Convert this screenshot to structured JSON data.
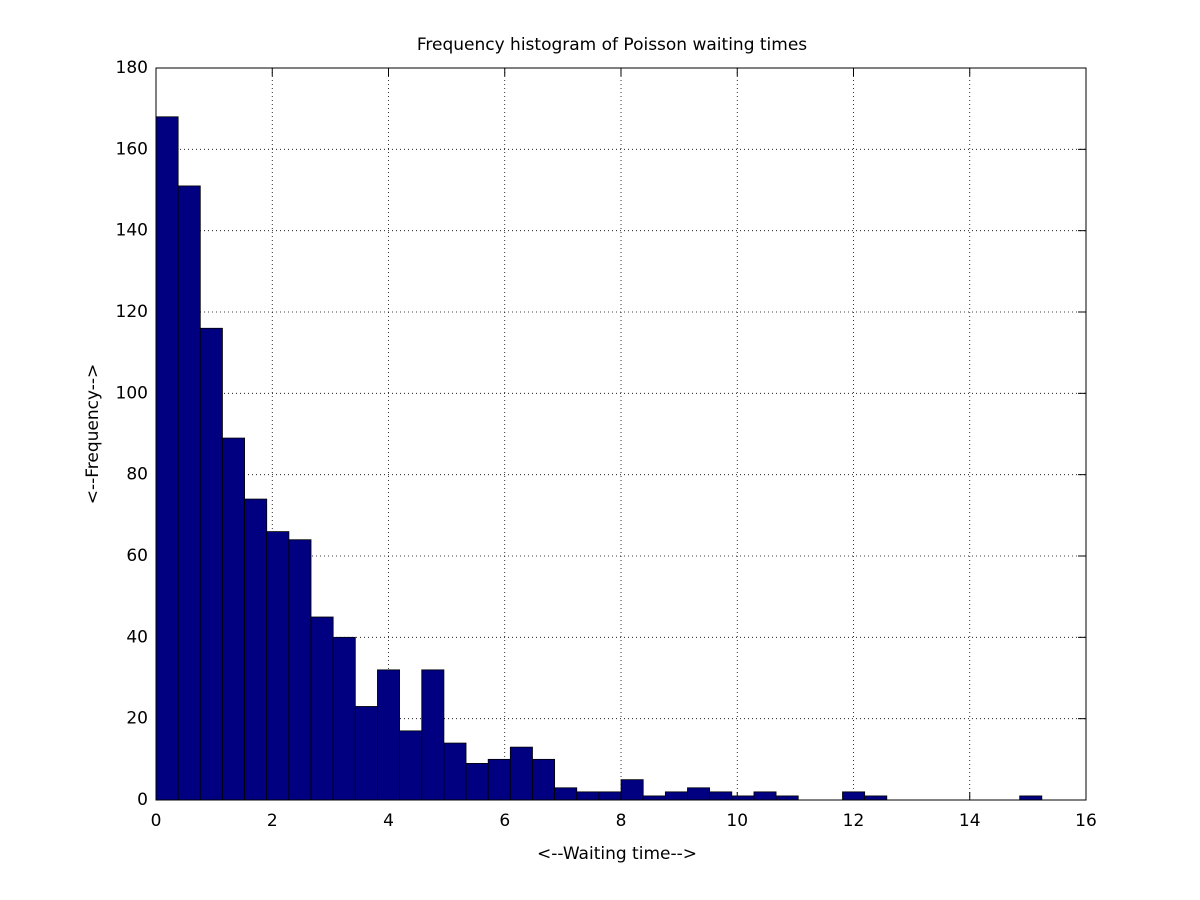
{
  "chart_data": {
    "type": "histogram",
    "title": "Frequency histogram of Poisson waiting times",
    "xlabel": "<--Waiting time-->",
    "ylabel": "<--Frequency-->",
    "bins": [
      0,
      0.381,
      0.762,
      1.143,
      1.524,
      1.905,
      2.286,
      2.667,
      3.048,
      3.429,
      3.81,
      4.191,
      4.572,
      4.953,
      5.334,
      5.715,
      6.096,
      6.477,
      6.858,
      7.239,
      7.62,
      8.001,
      8.382,
      8.763,
      9.144,
      9.525,
      9.906,
      10.287,
      10.668,
      11.049,
      11.43,
      11.811,
      12.192,
      12.573,
      12.954,
      13.335,
      13.716,
      14.097,
      14.478,
      14.859,
      15.24
    ],
    "values": [
      168,
      151,
      116,
      89,
      74,
      66,
      64,
      45,
      40,
      23,
      32,
      17,
      32,
      14,
      9,
      10,
      13,
      10,
      3,
      2,
      2,
      5,
      1,
      2,
      3,
      2,
      1,
      2,
      1,
      0,
      0,
      2,
      1,
      0,
      0,
      0,
      0,
      0,
      0,
      1
    ],
    "color": "#000080",
    "xlim": [
      0,
      16
    ],
    "xticks": [
      0,
      2,
      4,
      6,
      8,
      10,
      12,
      14,
      16
    ],
    "ylim": [
      0,
      180
    ],
    "yticks": [
      0,
      20,
      40,
      60,
      80,
      100,
      120,
      140,
      160,
      180
    ],
    "grid": true
  }
}
